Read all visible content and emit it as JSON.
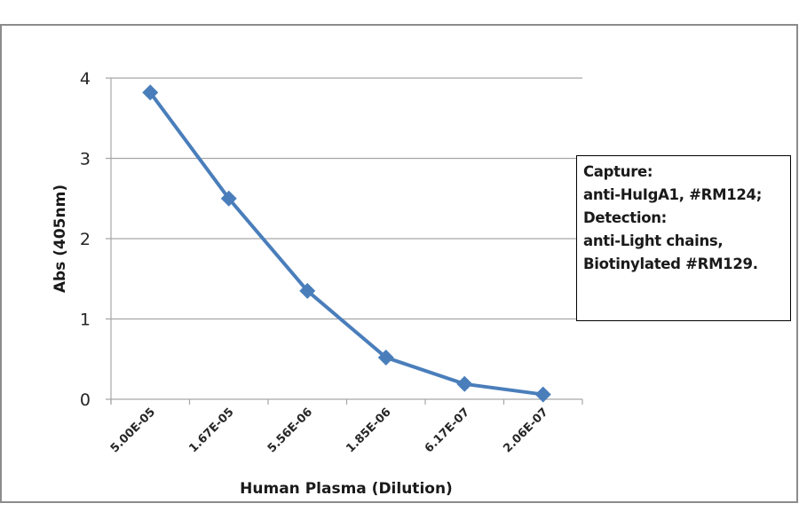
{
  "chart_data": {
    "type": "line",
    "title": "",
    "xlabel": "Human Plasma (Dilution)",
    "ylabel": "Abs (405nm)",
    "categories": [
      "5.00E-05",
      "1.67E-05",
      "5.56E-06",
      "1.85E-06",
      "6.17E-07",
      "2.06E-07"
    ],
    "series": [
      {
        "name": "Abs",
        "values": [
          3.82,
          2.5,
          1.35,
          0.52,
          0.19,
          0.06
        ],
        "color": "#4a7ebb",
        "marker": "diamond"
      }
    ],
    "ylim": [
      0,
      4
    ],
    "yticks": [
      "0",
      "1",
      "2",
      "3",
      "4"
    ],
    "grid": true,
    "legend_position": "none",
    "annotation": [
      "Capture:",
      "anti-HuIgA1, #RM124;",
      "Detection:",
      "anti-Light chains,",
      "Biotinylated #RM129."
    ]
  },
  "colors": {
    "series": "#4a7ebb",
    "grid": "#a6a6a6",
    "frame": "#8c8c8c"
  }
}
